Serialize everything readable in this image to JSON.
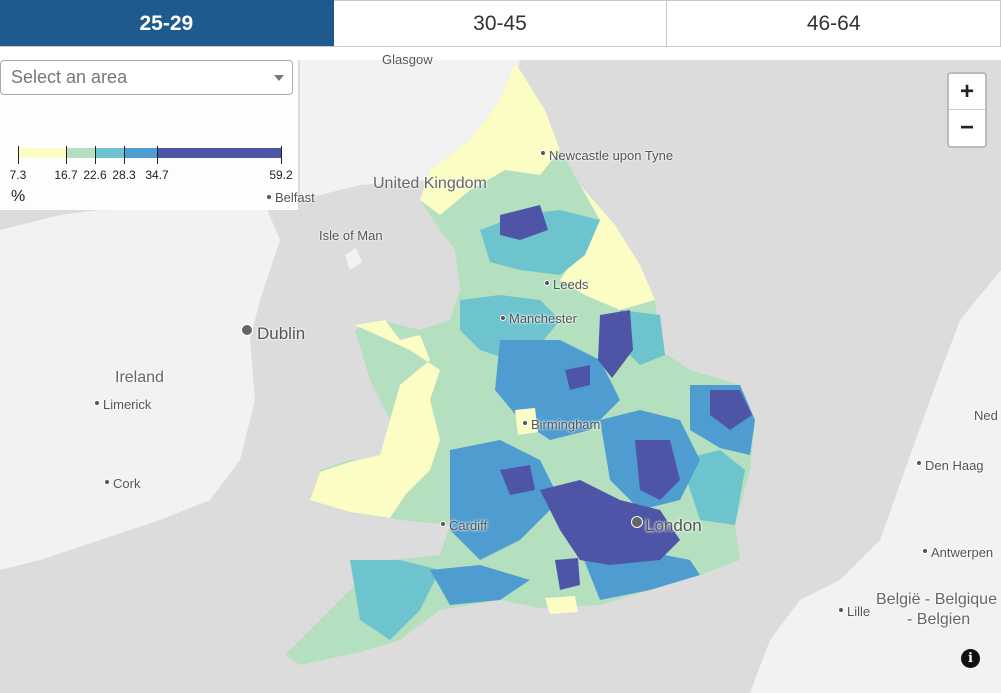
{
  "tabs": [
    {
      "label": "25-29",
      "active": true
    },
    {
      "label": "30-45",
      "active": false
    },
    {
      "label": "46-64",
      "active": false
    }
  ],
  "area_select": {
    "placeholder": "Select an area"
  },
  "legend": {
    "breaks": [
      "7.3",
      "16.7",
      "22.6",
      "28.3",
      "34.7",
      "59.2"
    ],
    "colors": [
      "#fcfcc5",
      "#b5e0c0",
      "#6ec4ce",
      "#4f9dd0",
      "#4f55a6"
    ],
    "unit": "%"
  },
  "zoom": {
    "in_label": "+",
    "out_label": "−"
  },
  "info": {
    "label": "i"
  },
  "places": {
    "glasgow": "Glasgow",
    "newcastle": "Newcastle upon Tyne",
    "united_kingdom": "United Kingdom",
    "belfast": "Belfast",
    "isle_of_man": "Isle of Man",
    "dublin": "Dublin",
    "leeds": "Leeds",
    "manchester": "Manchester",
    "ireland": "Ireland",
    "limerick": "Limerick",
    "birmingham": "Birmingham",
    "cork": "Cork",
    "cardiff": "Cardiff",
    "london": "London",
    "den_haag": "Den Haag",
    "antwerpen": "Antwerpen",
    "lille": "Lille",
    "belgie_1": "België - Belgique",
    "belgie_2": "- Belgien",
    "nederland": "Ned"
  },
  "colors": {
    "tab_active": "#1e5a8e",
    "sea": "#dcdcdc",
    "land": "#f2f2f2"
  }
}
